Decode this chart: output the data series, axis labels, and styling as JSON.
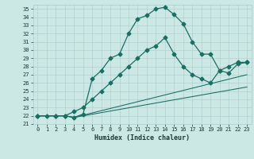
{
  "xlabel": "Humidex (Indice chaleur)",
  "bg_color": "#cce8e4",
  "grid_color": "#aaccca",
  "line_color": "#1a6e64",
  "xlim": [
    -0.5,
    23.5
  ],
  "ylim": [
    21.0,
    35.5
  ],
  "yticks": [
    21,
    22,
    23,
    24,
    25,
    26,
    27,
    28,
    29,
    30,
    31,
    32,
    33,
    34,
    35
  ],
  "xticks": [
    0,
    1,
    2,
    3,
    4,
    5,
    6,
    7,
    8,
    9,
    10,
    11,
    12,
    13,
    14,
    15,
    16,
    17,
    18,
    19,
    20,
    21,
    22,
    23
  ],
  "curve1_x": [
    0,
    1,
    2,
    3,
    4,
    5,
    6,
    7,
    8,
    9,
    10,
    11,
    12,
    13,
    14,
    15,
    16,
    17,
    18,
    19,
    20,
    21,
    22,
    23
  ],
  "curve1_y": [
    22.0,
    22.0,
    22.0,
    22.0,
    21.8,
    22.2,
    26.5,
    27.5,
    29.0,
    29.5,
    32.0,
    33.8,
    34.2,
    35.0,
    35.2,
    34.3,
    33.2,
    31.0,
    29.5,
    29.5,
    27.5,
    28.0,
    28.5,
    28.5
  ],
  "curve2_x": [
    0,
    2,
    3,
    4,
    5,
    6,
    7,
    8,
    9,
    10,
    11,
    12,
    13,
    14,
    15,
    16,
    17,
    18,
    19,
    20,
    21,
    22,
    23
  ],
  "curve2_y": [
    22.0,
    22.0,
    22.0,
    22.5,
    23.0,
    24.0,
    25.0,
    26.0,
    27.0,
    28.0,
    29.0,
    30.0,
    30.5,
    31.5,
    29.5,
    28.0,
    27.0,
    26.5,
    26.0,
    27.5,
    27.2,
    28.3,
    28.5
  ],
  "curve3_x": [
    0,
    3,
    4,
    23
  ],
  "curve3_y": [
    22.0,
    22.0,
    21.8,
    27.0
  ],
  "curve4_x": [
    0,
    3,
    4,
    23
  ],
  "curve4_y": [
    22.0,
    22.0,
    21.8,
    25.5
  ],
  "markersize": 2.5,
  "linewidth": 0.9
}
